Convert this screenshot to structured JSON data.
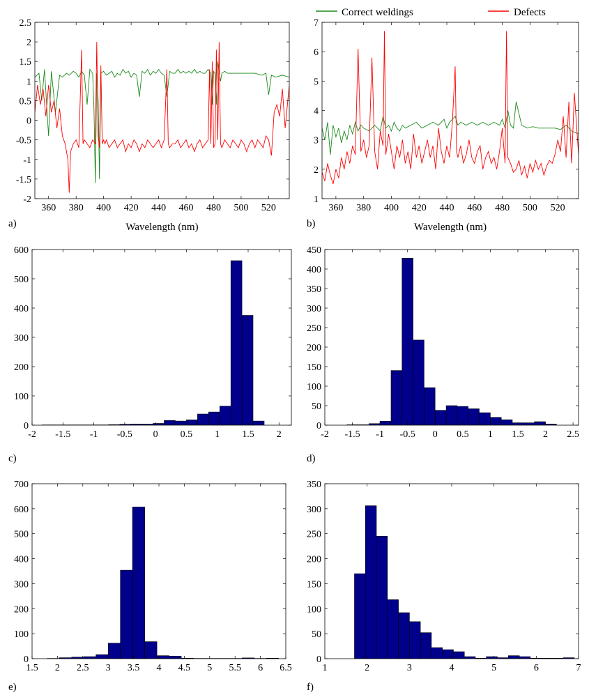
{
  "figure": {
    "legend": {
      "location": "top-right",
      "entries": [
        {
          "label": "Correct weldings",
          "color": "#1a8a1a"
        },
        {
          "label": "Defects",
          "color": "#ff0000"
        }
      ]
    }
  },
  "colors": {
    "green_series": "#1a8a1a",
    "red_series": "#ff0000",
    "bar_fill": "#00008b",
    "bar_edge": "#000000"
  },
  "chart_data": [
    {
      "panel": "a)",
      "type": "line",
      "xlabel": "Wavelength (nm)",
      "ylabel": "",
      "xlim": [
        350,
        535
      ],
      "ylim": [
        -2,
        2.5
      ],
      "xticks": [
        "360",
        "380",
        "400",
        "420",
        "440",
        "460",
        "480",
        "500",
        "520"
      ],
      "yticks": [
        "-2",
        "-1.5",
        "-1",
        "-0.5",
        "0",
        "0.5",
        "1",
        "1.5",
        "2",
        "2.5"
      ],
      "series": [
        {
          "name": "Correct weldings",
          "color": "#1a8a1a",
          "x": [
            350,
            353,
            355,
            357,
            360,
            362,
            365,
            368,
            370,
            373,
            375,
            378,
            380,
            382,
            384,
            386,
            388,
            390,
            392,
            393,
            394,
            395,
            396,
            397,
            398,
            400,
            402,
            404,
            406,
            408,
            410,
            412,
            414,
            416,
            418,
            420,
            422,
            424,
            426,
            428,
            430,
            432,
            434,
            436,
            438,
            440,
            442,
            444,
            446,
            448,
            450,
            452,
            454,
            456,
            458,
            460,
            462,
            464,
            466,
            468,
            470,
            472,
            474,
            476,
            478,
            479,
            480,
            481,
            482,
            483,
            484,
            485,
            486,
            488,
            490,
            495,
            500,
            505,
            510,
            515,
            518,
            520,
            522,
            525,
            530,
            535
          ],
          "y": [
            1.1,
            1.2,
            0.5,
            1.3,
            -0.4,
            1.25,
            0.2,
            1.15,
            1.1,
            1.2,
            1.15,
            1.25,
            1.2,
            1.1,
            1.25,
            1.15,
            0.4,
            1.3,
            1.2,
            0.3,
            -1.6,
            1.2,
            0.5,
            -1.5,
            1.2,
            1.25,
            1.15,
            1.2,
            1.25,
            1.1,
            1.2,
            1.15,
            1.3,
            1.2,
            1.25,
            1.1,
            1.2,
            1.15,
            0.6,
            1.25,
            1.2,
            1.3,
            1.15,
            1.25,
            1.2,
            1.3,
            1.2,
            1.15,
            0.6,
            1.25,
            1.2,
            1.2,
            1.3,
            1.2,
            1.25,
            1.2,
            1.25,
            1.2,
            1.3,
            1.2,
            1.25,
            1.2,
            1.2,
            1.3,
            1.2,
            0.4,
            1.25,
            1.2,
            0.4,
            1.5,
            1.2,
            1.0,
            1.2,
            1.25,
            1.2,
            1.2,
            1.2,
            1.2,
            1.2,
            1.15,
            1.2,
            0.65,
            1.15,
            1.1,
            1.15,
            1.1
          ]
        },
        {
          "name": "Defects",
          "color": "#ff0000",
          "x": [
            350,
            352,
            354,
            356,
            358,
            360,
            362,
            364,
            366,
            368,
            370,
            372,
            374,
            375,
            376,
            378,
            380,
            382,
            384,
            385,
            386,
            388,
            390,
            392,
            394,
            395,
            396,
            397,
            398,
            399,
            400,
            401,
            402,
            404,
            406,
            408,
            410,
            412,
            414,
            416,
            418,
            420,
            422,
            424,
            426,
            428,
            430,
            432,
            434,
            436,
            438,
            440,
            442,
            444,
            446,
            447,
            448,
            450,
            452,
            454,
            456,
            458,
            460,
            462,
            464,
            466,
            468,
            470,
            472,
            474,
            476,
            477,
            478,
            479,
            480,
            481,
            482,
            483,
            484,
            485,
            486,
            488,
            490,
            492,
            494,
            496,
            498,
            500,
            502,
            504,
            506,
            508,
            510,
            512,
            514,
            516,
            518,
            520,
            522,
            524,
            526,
            528,
            530,
            532,
            535
          ],
          "y": [
            0.2,
            0.9,
            0.4,
            0.8,
            0.1,
            0.9,
            0.2,
            0.5,
            -0.2,
            0.3,
            -0.4,
            -0.6,
            -1.0,
            -1.85,
            -0.8,
            -0.6,
            -0.5,
            -0.7,
            1.8,
            -0.6,
            -0.5,
            -0.6,
            -0.7,
            -0.5,
            -0.6,
            2.0,
            -0.4,
            -0.7,
            1.4,
            -0.6,
            -0.5,
            -0.6,
            -0.5,
            -0.7,
            -0.6,
            -0.5,
            -0.7,
            -0.6,
            -0.5,
            -0.8,
            -0.6,
            -0.7,
            -0.5,
            -0.6,
            -0.8,
            -0.6,
            -0.7,
            -0.5,
            -0.6,
            -0.7,
            -0.6,
            -0.5,
            -0.7,
            -0.5,
            1.3,
            -0.6,
            -0.7,
            -0.6,
            -0.6,
            -0.5,
            -0.7,
            -0.6,
            -0.5,
            -0.7,
            -0.6,
            -0.8,
            -0.6,
            -0.5,
            -0.7,
            -0.6,
            -0.5,
            1.3,
            -0.6,
            1.5,
            -0.7,
            -0.6,
            1.8,
            -0.5,
            2.0,
            -0.6,
            -0.7,
            -0.5,
            -0.6,
            -0.7,
            -0.5,
            -0.6,
            -0.7,
            -0.5,
            -0.6,
            -0.8,
            -0.6,
            -0.5,
            -0.7,
            -0.5,
            -0.6,
            -0.7,
            -0.4,
            -0.5,
            -0.9,
            0.2,
            0.4,
            0.1,
            0.8,
            -0.2,
            0.9
          ]
        }
      ]
    },
    {
      "panel": "b)",
      "type": "line",
      "xlabel": "Wavelength (nm)",
      "ylabel": "",
      "xlim": [
        350,
        535
      ],
      "ylim": [
        1,
        7
      ],
      "xticks": [
        "360",
        "380",
        "400",
        "420",
        "440",
        "460",
        "480",
        "500",
        "520"
      ],
      "yticks": [
        "1",
        "2",
        "3",
        "4",
        "5",
        "6",
        "7"
      ],
      "series": [
        {
          "name": "Correct weldings",
          "color": "#1a8a1a",
          "x": [
            350,
            352,
            354,
            356,
            358,
            360,
            362,
            364,
            366,
            368,
            370,
            372,
            374,
            376,
            378,
            380,
            384,
            388,
            392,
            394,
            396,
            398,
            400,
            402,
            404,
            406,
            408,
            410,
            414,
            418,
            422,
            426,
            430,
            434,
            438,
            440,
            442,
            444,
            446,
            448,
            450,
            454,
            458,
            462,
            466,
            470,
            474,
            478,
            480,
            482,
            484,
            486,
            488,
            490,
            494,
            498,
            502,
            506,
            510,
            514,
            518,
            522,
            526,
            530,
            535
          ],
          "y": [
            3.4,
            3.0,
            3.6,
            2.5,
            3.5,
            3.1,
            3.4,
            2.9,
            3.3,
            3.0,
            3.5,
            3.2,
            3.6,
            3.3,
            3.5,
            3.4,
            3.3,
            3.5,
            3.3,
            3.8,
            3.4,
            3.5,
            3.3,
            3.6,
            3.4,
            3.3,
            3.5,
            3.4,
            3.5,
            3.6,
            3.4,
            3.5,
            3.6,
            3.5,
            3.7,
            3.4,
            3.6,
            3.7,
            3.8,
            3.5,
            3.6,
            3.5,
            3.6,
            3.5,
            3.6,
            3.5,
            3.6,
            3.5,
            3.7,
            3.4,
            4.0,
            3.5,
            3.4,
            4.3,
            3.5,
            3.4,
            3.45,
            3.4,
            3.4,
            3.4,
            3.4,
            3.35,
            3.5,
            3.3,
            3.2
          ]
        },
        {
          "name": "Defects",
          "color": "#ff0000",
          "x": [
            350,
            352,
            354,
            356,
            358,
            360,
            362,
            364,
            366,
            368,
            370,
            372,
            374,
            376,
            378,
            380,
            382,
            384,
            386,
            388,
            390,
            392,
            394,
            395,
            396,
            398,
            400,
            402,
            404,
            406,
            408,
            410,
            412,
            414,
            416,
            418,
            420,
            422,
            424,
            426,
            428,
            430,
            432,
            434,
            436,
            438,
            440,
            442,
            444,
            446,
            447,
            448,
            450,
            452,
            454,
            456,
            458,
            460,
            462,
            464,
            466,
            468,
            470,
            472,
            474,
            476,
            478,
            480,
            482,
            483,
            484,
            486,
            488,
            490,
            492,
            494,
            496,
            498,
            500,
            502,
            504,
            506,
            508,
            510,
            512,
            514,
            516,
            518,
            520,
            522,
            524,
            526,
            528,
            530,
            532,
            535
          ],
          "y": [
            1.9,
            1.6,
            2.2,
            1.8,
            1.5,
            2.0,
            1.7,
            2.4,
            2.0,
            2.6,
            2.2,
            2.8,
            2.5,
            6.1,
            2.6,
            3.0,
            2.4,
            2.8,
            5.8,
            2.6,
            2.0,
            3.3,
            2.8,
            6.7,
            2.5,
            3.2,
            2.6,
            2.0,
            2.8,
            2.4,
            3.0,
            2.2,
            2.6,
            2.0,
            3.2,
            2.4,
            2.8,
            2.2,
            2.6,
            3.0,
            2.4,
            2.8,
            2.0,
            3.4,
            2.6,
            2.2,
            2.8,
            2.4,
            3.6,
            5.5,
            2.6,
            2.4,
            2.8,
            2.2,
            2.5,
            3.0,
            2.4,
            2.2,
            2.6,
            2.8,
            2.0,
            2.4,
            2.6,
            2.2,
            2.4,
            2.0,
            2.6,
            3.4,
            2.2,
            6.7,
            2.4,
            2.2,
            1.9,
            2.0,
            2.3,
            1.8,
            2.1,
            1.7,
            2.2,
            1.9,
            2.3,
            2.0,
            2.2,
            1.8,
            2.1,
            2.3,
            2.2,
            2.5,
            3.0,
            2.6,
            3.8,
            2.4,
            4.3,
            2.2,
            4.6,
            2.5
          ]
        }
      ]
    },
    {
      "panel": "c)",
      "type": "bar",
      "xlabel": "",
      "ylabel": "",
      "xlim": [
        -2,
        2.2
      ],
      "ylim": [
        0,
        600
      ],
      "xticks": [
        "-2",
        "-1.5",
        "-1",
        "-0.5",
        "0",
        "0.5",
        "1",
        "1.5",
        "2"
      ],
      "yticks": [
        "0",
        "100",
        "200",
        "300",
        "400",
        "500",
        "600"
      ],
      "bin_width": 0.18,
      "bin_starts": [
        -1.84,
        -1.66,
        -1.48,
        -1.3,
        -1.12,
        -0.94,
        -0.76,
        -0.58,
        -0.4,
        -0.22,
        -0.04,
        0.14,
        0.32,
        0.5,
        0.68,
        0.86,
        1.04,
        1.22,
        1.4,
        1.58
      ],
      "values": [
        1,
        1,
        1,
        1,
        1,
        1,
        2,
        3,
        4,
        4,
        6,
        16,
        14,
        18,
        38,
        45,
        65,
        562,
        375,
        14
      ]
    },
    {
      "panel": "d)",
      "type": "bar",
      "xlabel": "",
      "ylabel": "",
      "xlim": [
        -2,
        2.6
      ],
      "ylim": [
        0,
        450
      ],
      "xticks": [
        "-2",
        "-1.5",
        "-1",
        "-0.5",
        "0",
        "0.5",
        "1",
        "1.5",
        "2",
        "2.5"
      ],
      "yticks": [
        "0",
        "50",
        "100",
        "150",
        "200",
        "250",
        "300",
        "350",
        "400",
        "450"
      ],
      "bin_width": 0.2,
      "bin_starts": [
        -1.6,
        -1.4,
        -1.2,
        -1.0,
        -0.8,
        -0.6,
        -0.4,
        -0.2,
        0.0,
        0.2,
        0.4,
        0.6,
        0.8,
        1.0,
        1.2,
        1.4,
        1.6,
        1.8,
        2.0
      ],
      "values": [
        1,
        1,
        4,
        10,
        140,
        428,
        218,
        96,
        38,
        50,
        48,
        42,
        32,
        20,
        14,
        6,
        6,
        9,
        3
      ]
    },
    {
      "panel": "e)",
      "type": "bar",
      "xlabel": "",
      "ylabel": "",
      "xlim": [
        1.5,
        6.5
      ],
      "ylim": [
        0,
        700
      ],
      "xticks": [
        "1.5",
        "2",
        "2.5",
        "3",
        "3.5",
        "4",
        "4.5",
        "5",
        "5.5",
        "6",
        "6.5"
      ],
      "yticks": [
        "0",
        "100",
        "200",
        "300",
        "400",
        "500",
        "600",
        "700"
      ],
      "bin_width": 0.24,
      "bin_starts": [
        1.8,
        2.04,
        2.28,
        2.52,
        2.76,
        3.0,
        3.24,
        3.48,
        3.72,
        3.96,
        4.2,
        4.44,
        4.68,
        4.92,
        5.16,
        5.4,
        5.64,
        5.88,
        6.12
      ],
      "values": [
        1,
        4,
        6,
        8,
        16,
        62,
        354,
        607,
        68,
        12,
        10,
        2,
        1,
        1,
        1,
        1,
        3,
        1,
        2
      ]
    },
    {
      "panel": "f)",
      "type": "bar",
      "xlabel": "",
      "ylabel": "",
      "xlim": [
        1,
        7
      ],
      "ylim": [
        0,
        350
      ],
      "xticks": [
        "1",
        "2",
        "3",
        "4",
        "5",
        "6",
        "7"
      ],
      "yticks": [
        "0",
        "50",
        "100",
        "150",
        "200",
        "250",
        "300",
        "350"
      ],
      "bin_width": 0.26,
      "bin_starts": [
        1.7,
        1.96,
        2.22,
        2.48,
        2.74,
        3.0,
        3.26,
        3.52,
        3.78,
        4.04,
        4.3,
        4.56,
        4.82,
        5.08,
        5.34,
        5.6,
        5.86,
        6.12,
        6.38,
        6.64
      ],
      "values": [
        170,
        306,
        245,
        118,
        92,
        74,
        52,
        22,
        18,
        14,
        4,
        1,
        4,
        2,
        6,
        4,
        1,
        1,
        1,
        2
      ]
    }
  ]
}
